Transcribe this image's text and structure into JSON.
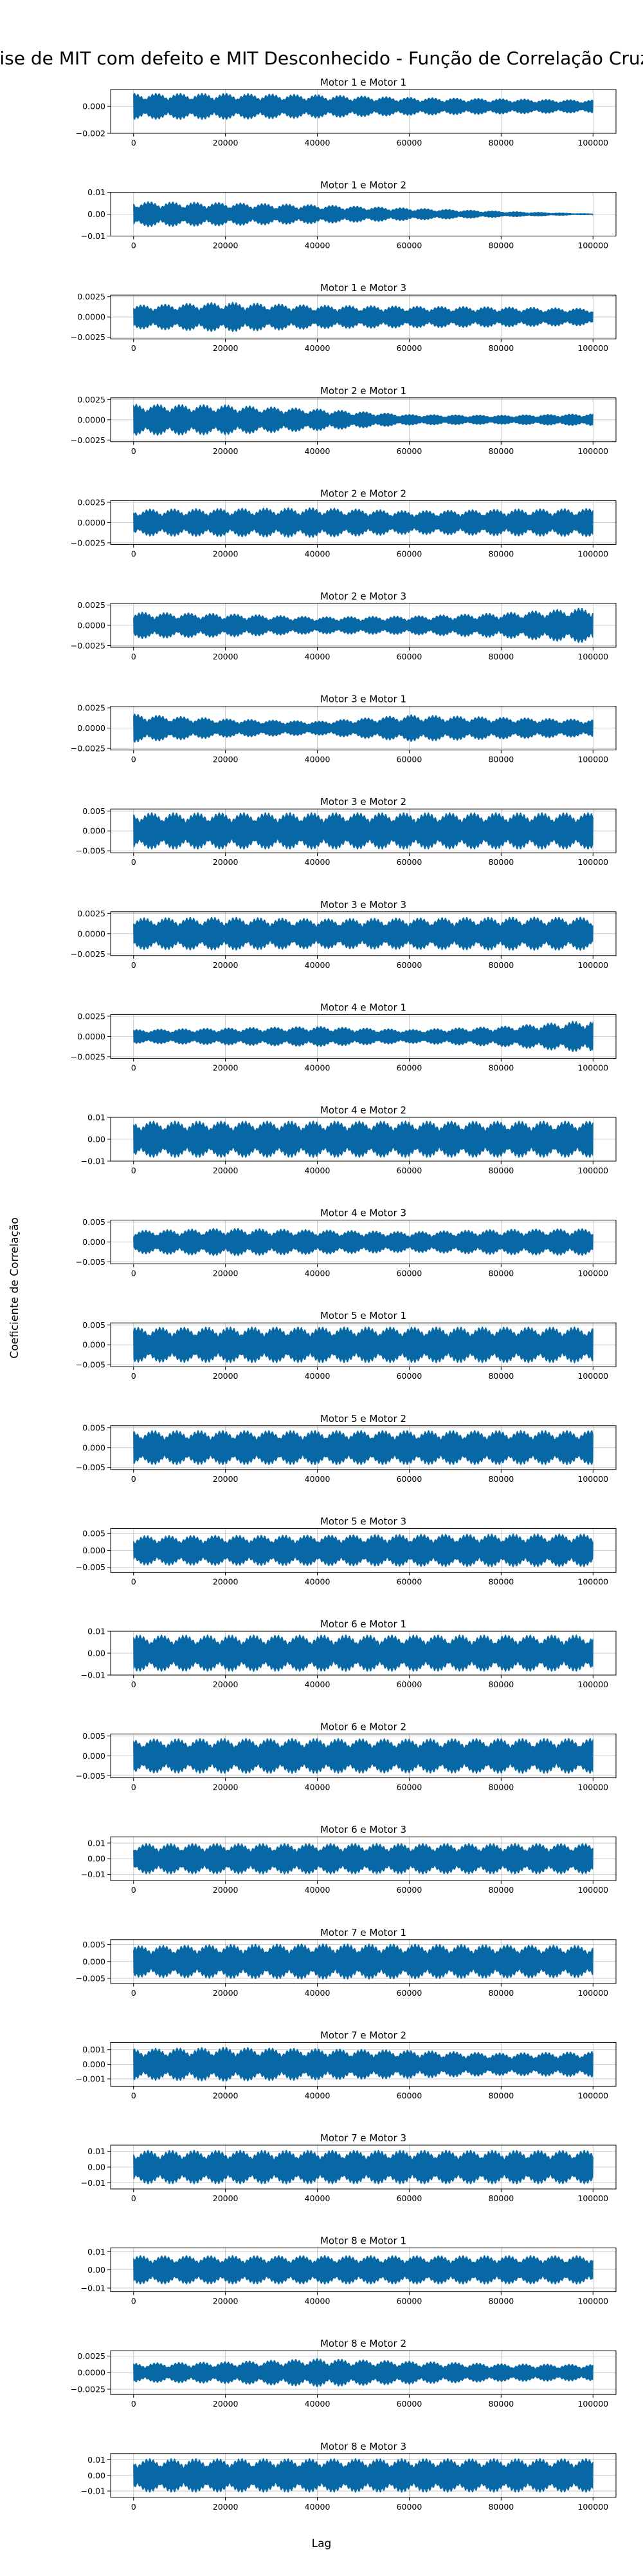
{
  "figure": {
    "title": "Análise de MIT com defeito e MIT Desconhecido - Função de Correlação Cruzada",
    "xlabel": "Lag",
    "ylabel": "Coeficiente de Correlação",
    "line_color": "#0868a6"
  },
  "chart_data": [
    {
      "type": "line",
      "title": "Motor 1 e Motor 1",
      "xlim": [
        0,
        100000
      ],
      "xticks": [
        "0",
        "20000",
        "40000",
        "60000",
        "80000",
        "100000"
      ],
      "ylim": [
        -0.002,
        0.00125
      ],
      "yticks": [
        {
          "v": 0.0,
          "label": "0.000"
        },
        {
          "v": -0.002,
          "label": "−0.002"
        }
      ],
      "envelope_x": [
        0,
        20000,
        40000,
        60000,
        80000,
        100000
      ],
      "envelope_amplitude": [
        0.001,
        0.001,
        0.0009,
        0.0007,
        0.0006,
        0.0005
      ],
      "grid": true
    },
    {
      "type": "line",
      "title": "Motor 1 e Motor 2",
      "xlim": [
        0,
        100000
      ],
      "xticks": [
        "0",
        "20000",
        "40000",
        "60000",
        "80000",
        "100000"
      ],
      "ylim": [
        -0.01,
        0.01
      ],
      "yticks": [
        {
          "v": 0.01,
          "label": "0.01"
        },
        {
          "v": 0.0,
          "label": "0.00"
        },
        {
          "v": -0.01,
          "label": "−0.01"
        }
      ],
      "envelope_x": [
        0,
        20000,
        40000,
        60000,
        80000,
        100000
      ],
      "envelope_amplitude": [
        0.006,
        0.0055,
        0.0045,
        0.003,
        0.0015,
        0.0003
      ],
      "grid": true
    },
    {
      "type": "line",
      "title": "Motor 1 e Motor 3",
      "xlim": [
        0,
        100000
      ],
      "xticks": [
        "0",
        "20000",
        "40000",
        "60000",
        "80000",
        "100000"
      ],
      "ylim": [
        -0.0027,
        0.0027
      ],
      "yticks": [
        {
          "v": 0.0025,
          "label": "0.0025"
        },
        {
          "v": 0.0,
          "label": "0.0000"
        },
        {
          "v": -0.0025,
          "label": "−0.0025"
        }
      ],
      "envelope_x": [
        0,
        20000,
        40000,
        60000,
        80000,
        100000
      ],
      "envelope_amplitude": [
        0.0015,
        0.0019,
        0.0015,
        0.0014,
        0.0013,
        0.0011
      ],
      "grid": true
    },
    {
      "type": "line",
      "title": "Motor 2 e Motor 1",
      "xlim": [
        0,
        100000
      ],
      "xticks": [
        "0",
        "20000",
        "40000",
        "60000",
        "80000",
        "100000"
      ],
      "ylim": [
        -0.0027,
        0.0027
      ],
      "yticks": [
        {
          "v": 0.0025,
          "label": "0.0025"
        },
        {
          "v": 0.0,
          "label": "0.0000"
        },
        {
          "v": -0.0025,
          "label": "−0.0025"
        }
      ],
      "envelope_x": [
        0,
        20000,
        40000,
        60000,
        80000,
        100000
      ],
      "envelope_amplitude": [
        0.002,
        0.0019,
        0.0014,
        0.0007,
        0.0006,
        0.0008
      ],
      "grid": true
    },
    {
      "type": "line",
      "title": "Motor 2 e Motor 2",
      "xlim": [
        0,
        100000
      ],
      "xticks": [
        "0",
        "20000",
        "40000",
        "60000",
        "80000",
        "100000"
      ],
      "ylim": [
        -0.0027,
        0.0027
      ],
      "yticks": [
        {
          "v": 0.0025,
          "label": "0.0025"
        },
        {
          "v": 0.0,
          "label": "0.0000"
        },
        {
          "v": -0.0025,
          "label": "−0.0025"
        }
      ],
      "envelope_x": [
        0,
        20000,
        40000,
        60000,
        80000,
        100000
      ],
      "envelope_amplitude": [
        0.0017,
        0.0018,
        0.0019,
        0.0015,
        0.0017,
        0.0018
      ],
      "grid": true
    },
    {
      "type": "line",
      "title": "Motor 2 e Motor 3",
      "xlim": [
        0,
        100000
      ],
      "xticks": [
        "0",
        "20000",
        "40000",
        "60000",
        "80000",
        "100000"
      ],
      "ylim": [
        -0.0027,
        0.0027
      ],
      "yticks": [
        {
          "v": 0.0025,
          "label": "0.0025"
        },
        {
          "v": 0.0,
          "label": "0.0000"
        },
        {
          "v": -0.0025,
          "label": "−0.0025"
        }
      ],
      "envelope_x": [
        0,
        20000,
        40000,
        60000,
        80000,
        100000
      ],
      "envelope_amplitude": [
        0.0017,
        0.0015,
        0.0011,
        0.0012,
        0.0016,
        0.0023
      ],
      "grid": true
    },
    {
      "type": "line",
      "title": "Motor 3 e Motor 1",
      "xlim": [
        0,
        100000
      ],
      "xticks": [
        "0",
        "20000",
        "40000",
        "60000",
        "80000",
        "100000"
      ],
      "ylim": [
        -0.0027,
        0.0027
      ],
      "yticks": [
        {
          "v": 0.0025,
          "label": "0.0025"
        },
        {
          "v": 0.0,
          "label": "0.0000"
        },
        {
          "v": -0.0025,
          "label": "−0.0025"
        }
      ],
      "envelope_x": [
        0,
        20000,
        40000,
        60000,
        80000,
        100000
      ],
      "envelope_amplitude": [
        0.0018,
        0.0012,
        0.0009,
        0.0017,
        0.0014,
        0.0011
      ],
      "grid": true
    },
    {
      "type": "line",
      "title": "Motor 3 e Motor 2",
      "xlim": [
        0,
        100000
      ],
      "xticks": [
        "0",
        "20000",
        "40000",
        "60000",
        "80000",
        "100000"
      ],
      "ylim": [
        -0.0055,
        0.0055
      ],
      "yticks": [
        {
          "v": 0.005,
          "label": "0.005"
        },
        {
          "v": 0.0,
          "label": "0.000"
        },
        {
          "v": -0.005,
          "label": "−0.005"
        }
      ],
      "envelope_x": [
        0,
        20000,
        40000,
        60000,
        80000,
        100000
      ],
      "envelope_amplitude": [
        0.0047,
        0.0047,
        0.0047,
        0.0047,
        0.0047,
        0.0047
      ],
      "grid": true
    },
    {
      "type": "line",
      "title": "Motor 3 e Motor 3",
      "xlim": [
        0,
        100000
      ],
      "xticks": [
        "0",
        "20000",
        "40000",
        "60000",
        "80000",
        "100000"
      ],
      "ylim": [
        -0.0027,
        0.0027
      ],
      "yticks": [
        {
          "v": 0.0025,
          "label": "0.0025"
        },
        {
          "v": 0.0,
          "label": "0.0000"
        },
        {
          "v": -0.0025,
          "label": "−0.0025"
        }
      ],
      "envelope_x": [
        0,
        20000,
        40000,
        60000,
        80000,
        100000
      ],
      "envelope_amplitude": [
        0.002,
        0.0021,
        0.0019,
        0.002,
        0.0021,
        0.0021
      ],
      "grid": true
    },
    {
      "type": "line",
      "title": "Motor 4 e Motor 1",
      "xlim": [
        0,
        100000
      ],
      "xticks": [
        "0",
        "20000",
        "40000",
        "60000",
        "80000",
        "100000"
      ],
      "ylim": [
        -0.0027,
        0.0027
      ],
      "yticks": [
        {
          "v": 0.0025,
          "label": "0.0025"
        },
        {
          "v": 0.0,
          "label": "0.0000"
        },
        {
          "v": -0.0025,
          "label": "−0.0025"
        }
      ],
      "envelope_x": [
        0,
        20000,
        40000,
        60000,
        80000,
        100000
      ],
      "envelope_amplitude": [
        0.0009,
        0.0011,
        0.0013,
        0.0009,
        0.0013,
        0.0021
      ],
      "grid": true
    },
    {
      "type": "line",
      "title": "Motor 4 e Motor 2",
      "xlim": [
        0,
        100000
      ],
      "xticks": [
        "0",
        "20000",
        "40000",
        "60000",
        "80000",
        "100000"
      ],
      "ylim": [
        -0.01,
        0.01
      ],
      "yticks": [
        {
          "v": 0.01,
          "label": "0.01"
        },
        {
          "v": 0.0,
          "label": "0.00"
        },
        {
          "v": -0.01,
          "label": "−0.01"
        }
      ],
      "envelope_x": [
        0,
        20000,
        40000,
        60000,
        80000,
        100000
      ],
      "envelope_amplitude": [
        0.0085,
        0.0085,
        0.0085,
        0.0085,
        0.0085,
        0.0085
      ],
      "grid": true
    },
    {
      "type": "line",
      "title": "Motor 4 e Motor 3",
      "xlim": [
        0,
        100000
      ],
      "xticks": [
        "0",
        "20000",
        "40000",
        "60000",
        "80000",
        "100000"
      ],
      "ylim": [
        -0.0055,
        0.0055
      ],
      "yticks": [
        {
          "v": 0.005,
          "label": "0.005"
        },
        {
          "v": 0.0,
          "label": "0.000"
        },
        {
          "v": -0.005,
          "label": "−0.005"
        }
      ],
      "envelope_x": [
        0,
        20000,
        40000,
        60000,
        80000,
        100000
      ],
      "envelope_amplitude": [
        0.003,
        0.0036,
        0.0032,
        0.0027,
        0.0033,
        0.0035
      ],
      "grid": true
    },
    {
      "type": "line",
      "title": "Motor 5 e Motor 1",
      "xlim": [
        0,
        100000
      ],
      "xticks": [
        "0",
        "20000",
        "40000",
        "60000",
        "80000",
        "100000"
      ],
      "ylim": [
        -0.0055,
        0.0055
      ],
      "yticks": [
        {
          "v": 0.005,
          "label": "0.005"
        },
        {
          "v": 0.0,
          "label": "0.000"
        },
        {
          "v": -0.005,
          "label": "−0.005"
        }
      ],
      "envelope_x": [
        0,
        20000,
        40000,
        60000,
        80000,
        100000
      ],
      "envelope_amplitude": [
        0.0045,
        0.0046,
        0.0046,
        0.0046,
        0.0046,
        0.0046
      ],
      "grid": true
    },
    {
      "type": "line",
      "title": "Motor 5 e Motor 2",
      "xlim": [
        0,
        100000
      ],
      "xticks": [
        "0",
        "20000",
        "40000",
        "60000",
        "80000",
        "100000"
      ],
      "ylim": [
        -0.0055,
        0.0055
      ],
      "yticks": [
        {
          "v": 0.005,
          "label": "0.005"
        },
        {
          "v": 0.0,
          "label": "0.000"
        },
        {
          "v": -0.005,
          "label": "−0.005"
        }
      ],
      "envelope_x": [
        0,
        20000,
        40000,
        60000,
        80000,
        100000
      ],
      "envelope_amplitude": [
        0.0044,
        0.0044,
        0.0044,
        0.0044,
        0.0044,
        0.0044
      ],
      "grid": true
    },
    {
      "type": "line",
      "title": "Motor 5 e Motor 3",
      "xlim": [
        0,
        100000
      ],
      "xticks": [
        "0",
        "20000",
        "40000",
        "60000",
        "80000",
        "100000"
      ],
      "ylim": [
        -0.0065,
        0.0065
      ],
      "yticks": [
        {
          "v": 0.005,
          "label": "0.005"
        },
        {
          "v": 0.0,
          "label": "0.000"
        },
        {
          "v": -0.005,
          "label": "−0.005"
        }
      ],
      "envelope_x": [
        0,
        20000,
        40000,
        60000,
        80000,
        100000
      ],
      "envelope_amplitude": [
        0.0045,
        0.0046,
        0.0047,
        0.0049,
        0.005,
        0.005
      ],
      "grid": true
    },
    {
      "type": "line",
      "title": "Motor 6 e Motor 1",
      "xlim": [
        0,
        100000
      ],
      "xticks": [
        "0",
        "20000",
        "40000",
        "60000",
        "80000",
        "100000"
      ],
      "ylim": [
        -0.01,
        0.01
      ],
      "yticks": [
        {
          "v": 0.01,
          "label": "0.01"
        },
        {
          "v": 0.0,
          "label": "0.00"
        },
        {
          "v": -0.01,
          "label": "−0.01"
        }
      ],
      "envelope_x": [
        0,
        20000,
        40000,
        60000,
        80000,
        100000
      ],
      "envelope_amplitude": [
        0.0085,
        0.0085,
        0.0085,
        0.0085,
        0.0085,
        0.0085
      ],
      "grid": true
    },
    {
      "type": "line",
      "title": "Motor 6 e Motor 2",
      "xlim": [
        0,
        100000
      ],
      "xticks": [
        "0",
        "20000",
        "40000",
        "60000",
        "80000",
        "100000"
      ],
      "ylim": [
        -0.0055,
        0.0055
      ],
      "yticks": [
        {
          "v": 0.005,
          "label": "0.005"
        },
        {
          "v": 0.0,
          "label": "0.000"
        },
        {
          "v": -0.005,
          "label": "−0.005"
        }
      ],
      "envelope_x": [
        0,
        20000,
        40000,
        60000,
        80000,
        100000
      ],
      "envelope_amplitude": [
        0.0044,
        0.0045,
        0.0045,
        0.0044,
        0.0045,
        0.0045
      ],
      "grid": true
    },
    {
      "type": "line",
      "title": "Motor 6 e Motor 3",
      "xlim": [
        0,
        100000
      ],
      "xticks": [
        "0",
        "20000",
        "40000",
        "60000",
        "80000",
        "100000"
      ],
      "ylim": [
        -0.014,
        0.014
      ],
      "yticks": [
        {
          "v": 0.01,
          "label": "0.01"
        },
        {
          "v": 0.0,
          "label": "0.00"
        },
        {
          "v": -0.01,
          "label": "−0.01"
        }
      ],
      "envelope_x": [
        0,
        20000,
        40000,
        60000,
        80000,
        100000
      ],
      "envelope_amplitude": [
        0.01,
        0.01,
        0.01,
        0.01,
        0.01,
        0.01
      ],
      "grid": true
    },
    {
      "type": "line",
      "title": "Motor 7 e Motor 1",
      "xlim": [
        0,
        100000
      ],
      "xticks": [
        "0",
        "20000",
        "40000",
        "60000",
        "80000",
        "100000"
      ],
      "ylim": [
        -0.0065,
        0.0065
      ],
      "yticks": [
        {
          "v": 0.005,
          "label": "0.005"
        },
        {
          "v": 0.0,
          "label": "0.000"
        },
        {
          "v": -0.005,
          "label": "−0.005"
        }
      ],
      "envelope_x": [
        0,
        20000,
        40000,
        60000,
        80000,
        100000
      ],
      "envelope_amplitude": [
        0.0048,
        0.0052,
        0.0054,
        0.0053,
        0.0051,
        0.0049
      ],
      "grid": true
    },
    {
      "type": "line",
      "title": "Motor 7 e Motor 2",
      "xlim": [
        0,
        100000
      ],
      "xticks": [
        "0",
        "20000",
        "40000",
        "60000",
        "80000",
        "100000"
      ],
      "ylim": [
        -0.0015,
        0.0015
      ],
      "yticks": [
        {
          "v": 0.001,
          "label": "0.001"
        },
        {
          "v": 0.0,
          "label": "0.000"
        },
        {
          "v": -0.001,
          "label": "−0.001"
        }
      ],
      "envelope_x": [
        0,
        20000,
        40000,
        60000,
        80000,
        100000
      ],
      "envelope_amplitude": [
        0.0011,
        0.0012,
        0.0011,
        0.001,
        0.0008,
        0.0009
      ],
      "grid": true
    },
    {
      "type": "line",
      "title": "Motor 7 e Motor 3",
      "xlim": [
        0,
        100000
      ],
      "xticks": [
        "0",
        "20000",
        "40000",
        "60000",
        "80000",
        "100000"
      ],
      "ylim": [
        -0.014,
        0.014
      ],
      "yticks": [
        {
          "v": 0.01,
          "label": "0.01"
        },
        {
          "v": 0.0,
          "label": "0.00"
        },
        {
          "v": -0.01,
          "label": "−0.01"
        }
      ],
      "envelope_x": [
        0,
        20000,
        40000,
        60000,
        80000,
        100000
      ],
      "envelope_amplitude": [
        0.011,
        0.011,
        0.011,
        0.011,
        0.011,
        0.011
      ],
      "grid": true
    },
    {
      "type": "line",
      "title": "Motor 8 e Motor 1",
      "xlim": [
        0,
        100000
      ],
      "xticks": [
        "0",
        "20000",
        "40000",
        "60000",
        "80000",
        "100000"
      ],
      "ylim": [
        -0.012,
        0.012
      ],
      "yticks": [
        {
          "v": 0.01,
          "label": "0.01"
        },
        {
          "v": 0.0,
          "label": "0.00"
        },
        {
          "v": -0.01,
          "label": "−0.01"
        }
      ],
      "envelope_x": [
        0,
        20000,
        40000,
        60000,
        80000,
        100000
      ],
      "envelope_amplitude": [
        0.008,
        0.008,
        0.008,
        0.008,
        0.008,
        0.008
      ],
      "grid": true
    },
    {
      "type": "line",
      "title": "Motor 8 e Motor 2",
      "xlim": [
        0,
        100000
      ],
      "xticks": [
        "0",
        "20000",
        "40000",
        "60000",
        "80000",
        "100000"
      ],
      "ylim": [
        -0.0033,
        0.0033
      ],
      "yticks": [
        {
          "v": 0.0025,
          "label": "0.0025"
        },
        {
          "v": 0.0,
          "label": "0.0000"
        },
        {
          "v": -0.0025,
          "label": "−0.0025"
        }
      ],
      "envelope_x": [
        0,
        20000,
        40000,
        60000,
        80000,
        100000
      ],
      "envelope_amplitude": [
        0.0015,
        0.0017,
        0.0022,
        0.0018,
        0.0014,
        0.0013
      ],
      "grid": true
    },
    {
      "type": "line",
      "title": "Motor 8 e Motor 3",
      "xlim": [
        0,
        100000
      ],
      "xticks": [
        "0",
        "20000",
        "40000",
        "60000",
        "80000",
        "100000"
      ],
      "ylim": [
        -0.014,
        0.014
      ],
      "yticks": [
        {
          "v": 0.01,
          "label": "0.01"
        },
        {
          "v": 0.0,
          "label": "0.00"
        },
        {
          "v": -0.01,
          "label": "−0.01"
        }
      ],
      "envelope_x": [
        0,
        20000,
        40000,
        60000,
        80000,
        100000
      ],
      "envelope_amplitude": [
        0.011,
        0.011,
        0.011,
        0.011,
        0.011,
        0.011
      ],
      "grid": true
    }
  ]
}
